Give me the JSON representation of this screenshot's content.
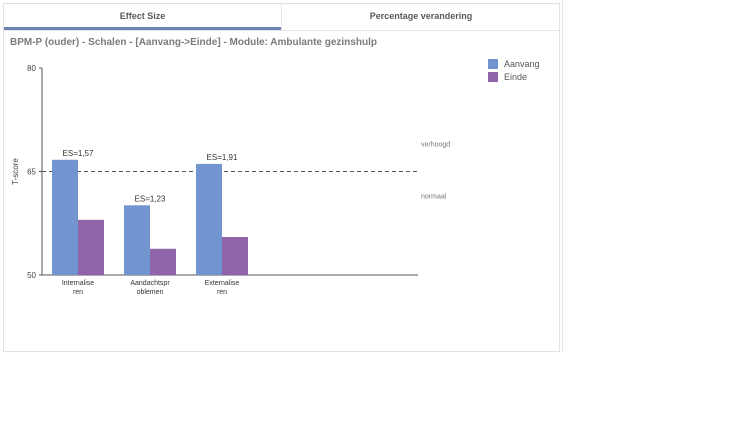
{
  "tabs": [
    {
      "label": "Effect Size",
      "active": true
    },
    {
      "label": "Percentage verandering",
      "active": false
    }
  ],
  "chart_title": "BPM-P (ouder) - Schalen - [Aanvang->Einde] - Module: Ambulante gezinshulp",
  "colors": {
    "aanvang": "#7294cf",
    "einde": "#8e65a8",
    "tab_underline": "#6b84b4"
  },
  "chart_data": {
    "type": "bar",
    "title": "BPM-P (ouder) - Schalen - [Aanvang->Einde] - Module: Ambulante gezinshulp",
    "xlabel": "",
    "ylabel": "T-score",
    "ylim": [
      50,
      80
    ],
    "yticks": [
      50,
      65,
      80
    ],
    "categories": [
      "Internaliseren",
      "Aandachtsproblemen",
      "Externaliseren"
    ],
    "category_labels": [
      [
        "Internalise",
        "ren"
      ],
      [
        "Aandachtspr",
        "oblemen"
      ],
      [
        "Externalise",
        "ren"
      ]
    ],
    "series": [
      {
        "name": "Aanvang",
        "values": [
          66.7,
          60.1,
          66.1
        ]
      },
      {
        "name": "Einde",
        "values": [
          58.0,
          53.8,
          55.5
        ]
      }
    ],
    "annotations": [
      "ES=1,57",
      "ES=1,23",
      "ES=1,91"
    ],
    "reference_line": {
      "value": 65,
      "style": "dashed",
      "label_above": "verhoogd",
      "label_below": "normaal"
    },
    "legend_position": "top-right",
    "grid": false
  }
}
